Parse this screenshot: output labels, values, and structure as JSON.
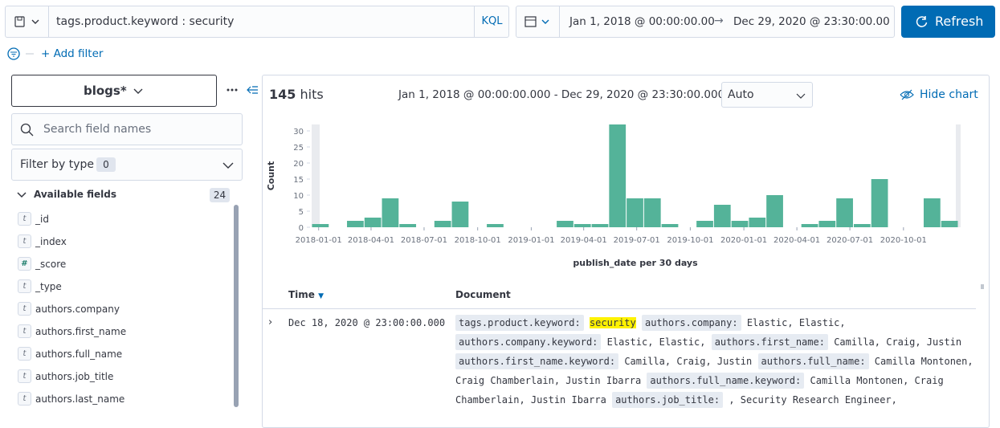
{
  "query_bar": {
    "query": "tags.product.keyword : security",
    "language": "KQL",
    "start": "Jan 1, 2018 @ 00:00:00.00",
    "end": "Dec 29, 2020 @ 23:30:00.00",
    "refresh": "Refresh"
  },
  "filter_bar": {
    "add": "+ Add filter"
  },
  "sidebar": {
    "index_pattern": "blogs*",
    "search_placeholder": "Search field names",
    "filter_by_type": "Filter by type",
    "filter_count": 0,
    "available_fields": "Available fields",
    "field_count": 24,
    "fields": [
      {
        "type": "t",
        "name": "_id"
      },
      {
        "type": "t",
        "name": "_index"
      },
      {
        "type": "#",
        "name": "_score"
      },
      {
        "type": "t",
        "name": "_type"
      },
      {
        "type": "t",
        "name": "authors.company"
      },
      {
        "type": "t",
        "name": "authors.first_name"
      },
      {
        "type": "t",
        "name": "authors.full_name"
      },
      {
        "type": "t",
        "name": "authors.job_title"
      },
      {
        "type": "t",
        "name": "authors.last_name"
      }
    ]
  },
  "results": {
    "hits": 145,
    "hits_label": "hits",
    "range": "Jan 1, 2018 @ 00:00:00.000 - Dec 29, 2020 @ 23:30:00.000",
    "interval": "Auto",
    "hide_chart": "Hide chart"
  },
  "chart_data": {
    "type": "histogram",
    "y_label": "Count",
    "x_label": "publish_date per 30 days",
    "color": "#54b399",
    "bins": [
      "2017-12-20",
      "2018-01-19",
      "2018-02-18",
      "2018-03-20",
      "2018-04-19",
      "2018-05-19",
      "2018-06-18",
      "2018-07-18",
      "2018-08-17",
      "2018-09-16",
      "2018-10-16",
      "2018-11-15",
      "2018-12-15",
      "2019-01-14",
      "2019-02-13",
      "2019-03-15",
      "2019-04-14",
      "2019-05-14",
      "2019-06-13",
      "2019-07-13",
      "2019-08-12",
      "2019-09-11",
      "2019-10-11",
      "2019-11-10",
      "2019-12-10",
      "2020-01-09",
      "2020-02-08",
      "2020-03-09",
      "2020-04-08",
      "2020-05-08",
      "2020-06-07",
      "2020-07-07",
      "2020-08-06",
      "2020-09-05",
      "2020-10-05",
      "2020-11-04",
      "2020-12-04",
      "2021-01-03"
    ],
    "values": [
      1,
      0,
      2,
      3,
      9,
      1,
      0,
      2,
      8,
      0,
      1,
      0,
      0,
      0,
      2,
      1,
      1,
      32,
      9,
      9,
      1,
      0,
      2,
      7,
      2,
      3,
      10,
      0,
      1,
      2,
      9,
      1,
      15,
      0,
      0,
      9,
      2
    ],
    "xlim": [
      "2017-12-20",
      "2021-01-03"
    ],
    "xticks": [
      "2018-01-01",
      "2018-04-01",
      "2018-07-01",
      "2018-10-01",
      "2019-01-01",
      "2019-04-01",
      "2019-07-01",
      "2019-10-01",
      "2020-01-01",
      "2020-04-01",
      "2020-07-01",
      "2020-10-01"
    ],
    "ylim": [
      0,
      32
    ],
    "yticks": [
      0,
      5,
      10,
      15,
      20,
      25,
      30
    ]
  },
  "table": {
    "columns": [
      "Time",
      "Document"
    ],
    "rows": [
      {
        "time": "Dec 18, 2020 @ 23:00:00.000",
        "fields": [
          {
            "key": "tags.product.keyword:",
            "value": "security",
            "highlight": true
          },
          {
            "key": "authors.company:",
            "value": "Elastic, Elastic,"
          },
          {
            "key": "authors.company.keyword:",
            "value": "Elastic, Elastic,"
          },
          {
            "key": "authors.first_name:",
            "value": "Camilla, Craig, Justin"
          },
          {
            "key": "authors.first_name.keyword:",
            "value": "Camilla, Craig, Justin"
          },
          {
            "key": "authors.full_name:",
            "value": "Camilla Montonen, Craig Chamberlain, Justin Ibarra"
          },
          {
            "key": "authors.full_name.keyword:",
            "value": "Camilla Montonen, Craig Chamberlain, Justin Ibarra"
          },
          {
            "key": "authors.job_title:",
            "value": ", Security Research Engineer,"
          }
        ]
      }
    ]
  }
}
